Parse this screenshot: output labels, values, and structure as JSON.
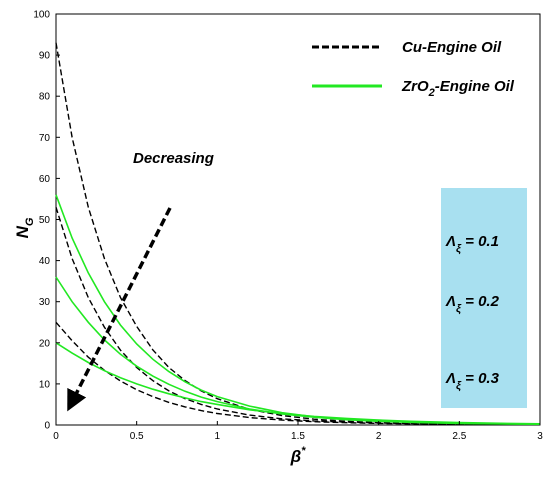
{
  "chart_data": {
    "type": "line",
    "xlabel": "β*",
    "ylabel": "NG",
    "xlim": [
      0,
      3
    ],
    "ylim": [
      0,
      100
    ],
    "xticks": [
      "0",
      "0.5",
      "1",
      "1.5",
      "2",
      "2.5",
      "3"
    ],
    "yticks": [
      "0",
      "10",
      "20",
      "30",
      "40",
      "50",
      "60",
      "70",
      "80",
      "90",
      "100"
    ],
    "grid": false,
    "legend_position": "top-right",
    "legend": [
      {
        "label": "Cu-Engine Oil",
        "style": "dashed",
        "color": "#000000"
      },
      {
        "label": "ZrO2-Engine Oil",
        "style": "solid",
        "color": "#22e822"
      }
    ],
    "annotation_text": "Decreasing",
    "parameter_labels": [
      "Λξ = 0.1",
      "Λξ = 0.2",
      "Λξ = 0.3"
    ],
    "parameter_box_color": "#a8e0f0",
    "series": [
      {
        "fluid": "Cu-Engine Oil",
        "style": "dashed",
        "color": "#000000",
        "x": [
          0,
          0.1,
          0.2,
          0.3,
          0.4,
          0.5,
          0.6,
          0.7,
          0.8,
          0.9,
          1.0,
          1.2,
          1.4,
          1.6,
          1.8,
          2.0,
          2.2,
          2.5,
          2.8,
          3.0
        ],
        "y": [
          93,
          70,
          53,
          40.5,
          31,
          24,
          18.3,
          14,
          10.8,
          8.3,
          6.4,
          3.8,
          2.3,
          1.4,
          0.9,
          0.6,
          0.4,
          0.25,
          0.15,
          0.1
        ]
      },
      {
        "fluid": "Cu-Engine Oil",
        "style": "dashed",
        "color": "#000000",
        "x": [
          0,
          0.1,
          0.2,
          0.3,
          0.4,
          0.5,
          0.6,
          0.7,
          0.8,
          0.9,
          1.0,
          1.2,
          1.4,
          1.6,
          1.8,
          2.0,
          2.2,
          2.5,
          2.8,
          3.0
        ],
        "y": [
          53,
          40.5,
          31,
          23.8,
          18.2,
          14,
          10.8,
          8.3,
          6.4,
          5.0,
          3.9,
          2.4,
          1.5,
          1.0,
          0.7,
          0.5,
          0.35,
          0.2,
          0.12,
          0.1
        ]
      },
      {
        "fluid": "Cu-Engine Oil",
        "style": "dashed",
        "color": "#000000",
        "x": [
          0,
          0.1,
          0.2,
          0.3,
          0.4,
          0.5,
          0.6,
          0.7,
          0.8,
          0.9,
          1.0,
          1.2,
          1.4,
          1.6,
          1.8,
          2.0,
          2.2,
          2.5,
          2.8,
          3.0
        ],
        "y": [
          25,
          20.5,
          16.5,
          13.3,
          10.7,
          8.6,
          6.9,
          5.5,
          4.4,
          3.5,
          2.8,
          1.8,
          1.2,
          0.8,
          0.55,
          0.4,
          0.3,
          0.18,
          0.1,
          0.08
        ]
      },
      {
        "fluid": "ZrO2-Engine Oil",
        "style": "solid",
        "color": "#22e822",
        "x": [
          0,
          0.1,
          0.2,
          0.3,
          0.4,
          0.5,
          0.6,
          0.7,
          0.8,
          0.9,
          1.0,
          1.2,
          1.4,
          1.6,
          1.8,
          2.0,
          2.2,
          2.5,
          2.8,
          3.0
        ],
        "y": [
          56,
          45.5,
          37,
          30,
          24.3,
          19.7,
          16,
          13,
          10.5,
          8.5,
          6.9,
          4.6,
          3.0,
          2.0,
          1.4,
          1.0,
          0.7,
          0.45,
          0.3,
          0.2
        ]
      },
      {
        "fluid": "ZrO2-Engine Oil",
        "style": "solid",
        "color": "#22e822",
        "x": [
          0,
          0.1,
          0.2,
          0.3,
          0.4,
          0.5,
          0.6,
          0.7,
          0.8,
          0.9,
          1.0,
          1.2,
          1.4,
          1.6,
          1.8,
          2.0,
          2.2,
          2.5,
          2.8,
          3.0
        ],
        "y": [
          36,
          30,
          25,
          20.7,
          17.2,
          14.3,
          11.9,
          9.9,
          8.2,
          6.8,
          5.7,
          3.9,
          2.7,
          1.9,
          1.3,
          0.9,
          0.65,
          0.4,
          0.25,
          0.2
        ]
      },
      {
        "fluid": "ZrO2-Engine Oil",
        "style": "solid",
        "color": "#22e822",
        "x": [
          0,
          0.1,
          0.2,
          0.3,
          0.4,
          0.5,
          0.6,
          0.7,
          0.8,
          0.9,
          1.0,
          1.2,
          1.4,
          1.6,
          1.8,
          2.0,
          2.2,
          2.5,
          2.8,
          3.0
        ],
        "y": [
          20,
          17.5,
          15.2,
          13.2,
          11.5,
          10,
          8.7,
          7.6,
          6.6,
          5.7,
          5.0,
          3.7,
          2.8,
          2.1,
          1.6,
          1.2,
          0.9,
          0.6,
          0.4,
          0.3
        ]
      }
    ]
  }
}
